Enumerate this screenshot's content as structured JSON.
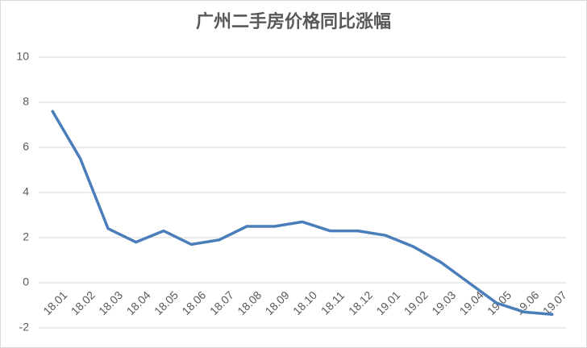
{
  "chart_data": {
    "type": "line",
    "title": "广州二手房价格同比涨幅",
    "categories": [
      "18.01",
      "18.02",
      "18.03",
      "18.04",
      "18.05",
      "18.06",
      "18.07",
      "18.08",
      "18.09",
      "18.10",
      "18.11",
      "18.12",
      "19.01",
      "19.02",
      "19.03",
      "19.04",
      "19.05",
      "19.06",
      "19.07"
    ],
    "series": [
      {
        "name": "同比涨幅",
        "color": "#4a7ebb",
        "values": [
          7.6,
          5.5,
          2.4,
          1.8,
          2.3,
          1.7,
          1.9,
          2.5,
          2.5,
          2.7,
          2.3,
          2.3,
          2.1,
          1.6,
          0.9,
          0,
          -0.9,
          -1.3,
          -1.4
        ]
      }
    ],
    "ylim": [
      -2,
      10
    ],
    "yticks": [
      -2,
      0,
      2,
      4,
      6,
      8,
      10
    ],
    "grid": true
  }
}
